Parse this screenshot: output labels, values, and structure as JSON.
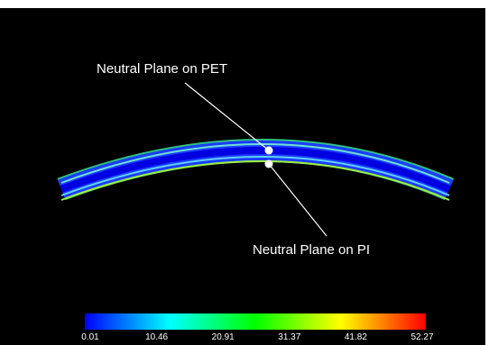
{
  "annotations": {
    "pet": "Neutral Plane on PET",
    "pi": "Neutral Plane on PI"
  },
  "colorbar": {
    "ticks": [
      "0.01",
      "10.46",
      "20.91",
      "31.37",
      "41.82",
      "52.27"
    ]
  }
}
